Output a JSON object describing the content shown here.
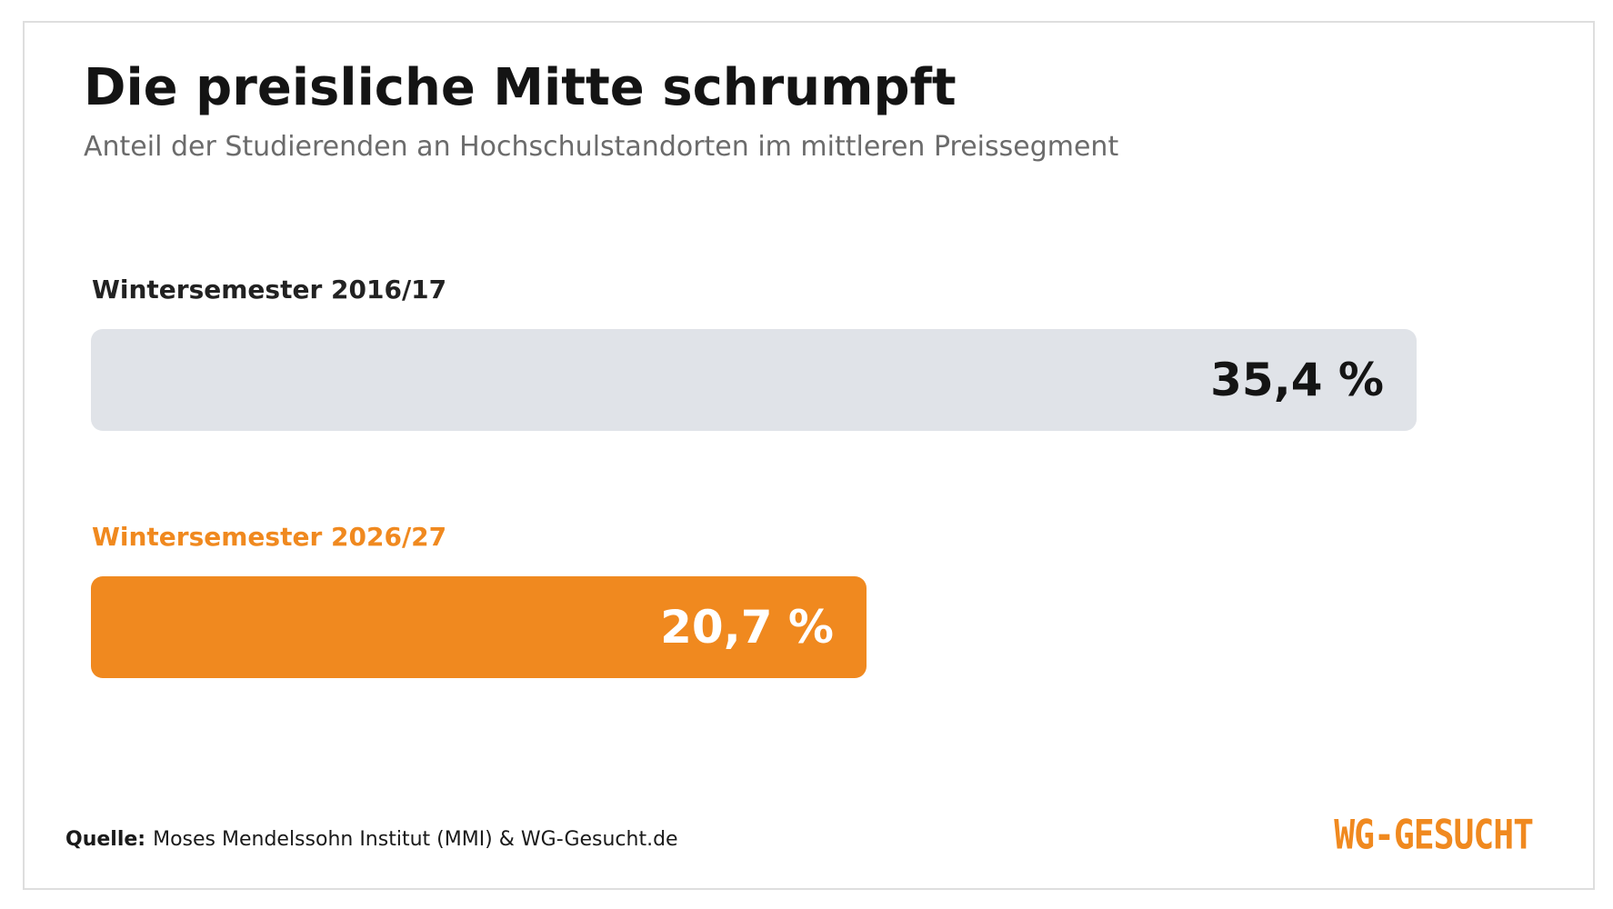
{
  "chart_data": {
    "type": "bar",
    "orientation": "horizontal",
    "title": "Die preisliche Mitte schrumpft",
    "subtitle": "Anteil der Studierenden an Hochschulstandorten im mittleren Preissegment",
    "categories": [
      "Wintersemester 2016/17",
      "Wintersemester 2026/27"
    ],
    "values": [
      35.4,
      20.7
    ],
    "value_labels": [
      "35,4 %",
      "20,7 %"
    ],
    "unit": "%",
    "xlim": [
      0,
      35.4
    ],
    "grid": false,
    "bar_colors": [
      "#e0e3e8",
      "#f0891f"
    ],
    "label_colors": [
      "#222222",
      "#f0891f"
    ],
    "value_text_colors": [
      "#141414",
      "#ffffff"
    ]
  },
  "source": {
    "label": "Quelle:",
    "text": "Moses Mendelssohn Institut (MMI) & WG-Gesucht.de"
  },
  "logo": {
    "text": "WG-GESUCHT",
    "color": "#f0891f"
  }
}
